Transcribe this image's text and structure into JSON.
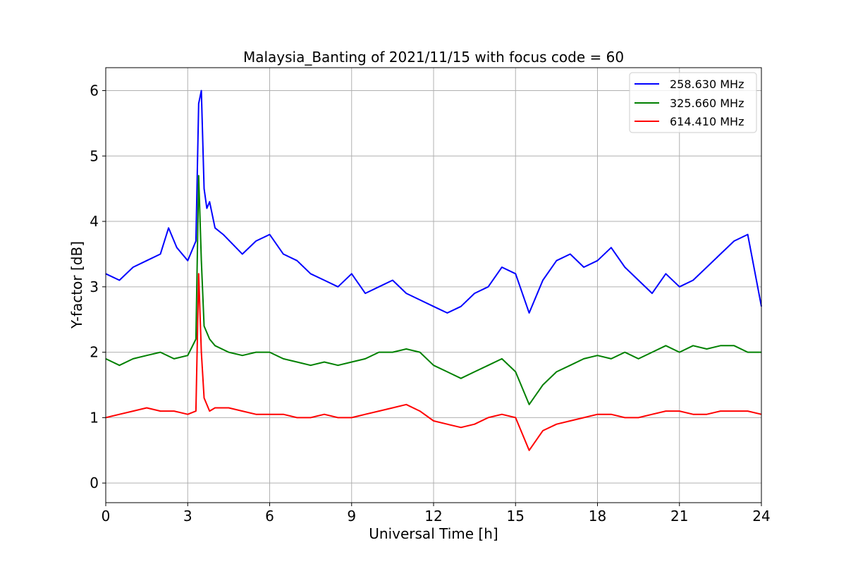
{
  "chart_data": {
    "type": "line",
    "title": "Malaysia_Banting of 2021/11/15 with focus code = 60",
    "xlabel": "Universal Time [h]",
    "ylabel": "Y-factor [dB]",
    "xlim": [
      0,
      24
    ],
    "ylim": [
      -0.3,
      6.35
    ],
    "xticks": [
      0,
      3,
      6,
      9,
      12,
      15,
      18,
      21,
      24
    ],
    "yticks": [
      0,
      1,
      2,
      3,
      4,
      5,
      6
    ],
    "grid": true,
    "legend_position": "top-right",
    "series": [
      {
        "name": "258.630 MHz",
        "color": "#0000ff",
        "x": [
          0,
          0.5,
          1,
          1.5,
          2,
          2.3,
          2.6,
          3,
          3.3,
          3.4,
          3.5,
          3.6,
          3.7,
          3.8,
          4,
          4.3,
          5,
          5.5,
          6,
          6.5,
          7,
          7.5,
          8,
          8.5,
          9,
          9.5,
          10,
          10.5,
          11,
          11.5,
          12,
          12.5,
          13,
          13.5,
          14,
          14.5,
          15,
          15.5,
          16,
          16.5,
          17,
          17.5,
          18,
          18.5,
          19,
          19.5,
          20,
          20.5,
          21,
          21.5,
          22,
          22.5,
          23,
          23.5,
          24
        ],
        "y": [
          3.2,
          3.1,
          3.3,
          3.4,
          3.5,
          3.9,
          3.6,
          3.4,
          3.7,
          5.8,
          6.0,
          4.5,
          4.2,
          4.3,
          3.9,
          3.8,
          3.5,
          3.7,
          3.8,
          3.5,
          3.4,
          3.2,
          3.1,
          3.0,
          3.2,
          2.9,
          3.0,
          3.1,
          2.9,
          2.8,
          2.7,
          2.6,
          2.7,
          2.9,
          3.0,
          3.3,
          3.2,
          2.6,
          3.1,
          3.4,
          3.5,
          3.3,
          3.4,
          3.6,
          3.3,
          3.1,
          2.9,
          3.2,
          3.0,
          3.1,
          3.3,
          3.5,
          3.7,
          3.8,
          2.7
        ]
      },
      {
        "name": "325.660 MHz",
        "color": "#008000",
        "x": [
          0,
          0.5,
          1,
          1.5,
          2,
          2.5,
          3,
          3.3,
          3.4,
          3.5,
          3.6,
          3.8,
          4,
          4.5,
          5,
          5.5,
          6,
          6.5,
          7,
          7.5,
          8,
          8.5,
          9,
          9.5,
          10,
          10.5,
          11,
          11.5,
          12,
          12.5,
          13,
          13.5,
          14,
          14.5,
          15,
          15.5,
          16,
          16.5,
          17,
          17.5,
          18,
          18.5,
          19,
          19.5,
          20,
          20.5,
          21,
          21.5,
          22,
          22.5,
          23,
          23.5,
          24
        ],
        "y": [
          1.9,
          1.8,
          1.9,
          1.95,
          2.0,
          1.9,
          1.95,
          2.2,
          4.7,
          3.4,
          2.4,
          2.2,
          2.1,
          2.0,
          1.95,
          2.0,
          2.0,
          1.9,
          1.85,
          1.8,
          1.85,
          1.8,
          1.85,
          1.9,
          2.0,
          2.0,
          2.05,
          2.0,
          1.8,
          1.7,
          1.6,
          1.7,
          1.8,
          1.9,
          1.7,
          1.2,
          1.5,
          1.7,
          1.8,
          1.9,
          1.95,
          1.9,
          2.0,
          1.9,
          2.0,
          2.1,
          2.0,
          2.1,
          2.05,
          2.1,
          2.1,
          2.0,
          2.0
        ]
      },
      {
        "name": "614.410 MHz",
        "color": "#ff0000",
        "x": [
          0,
          0.5,
          1,
          1.5,
          2,
          2.5,
          3,
          3.3,
          3.4,
          3.5,
          3.6,
          3.8,
          4,
          4.5,
          5,
          5.5,
          6,
          6.5,
          7,
          7.5,
          8,
          8.5,
          9,
          9.5,
          10,
          10.5,
          11,
          11.5,
          12,
          12.5,
          13,
          13.5,
          14,
          14.5,
          15,
          15.5,
          16,
          16.5,
          17,
          17.5,
          18,
          18.5,
          19,
          19.5,
          20,
          20.5,
          21,
          21.5,
          22,
          22.5,
          23,
          23.5,
          24
        ],
        "y": [
          1.0,
          1.05,
          1.1,
          1.15,
          1.1,
          1.1,
          1.05,
          1.1,
          3.2,
          2.0,
          1.3,
          1.1,
          1.15,
          1.15,
          1.1,
          1.05,
          1.05,
          1.05,
          1.0,
          1.0,
          1.05,
          1.0,
          1.0,
          1.05,
          1.1,
          1.15,
          1.2,
          1.1,
          0.95,
          0.9,
          0.85,
          0.9,
          1.0,
          1.05,
          1.0,
          0.5,
          0.8,
          0.9,
          0.95,
          1.0,
          1.05,
          1.05,
          1.0,
          1.0,
          1.05,
          1.1,
          1.1,
          1.05,
          1.05,
          1.1,
          1.1,
          1.1,
          1.05
        ]
      }
    ]
  }
}
